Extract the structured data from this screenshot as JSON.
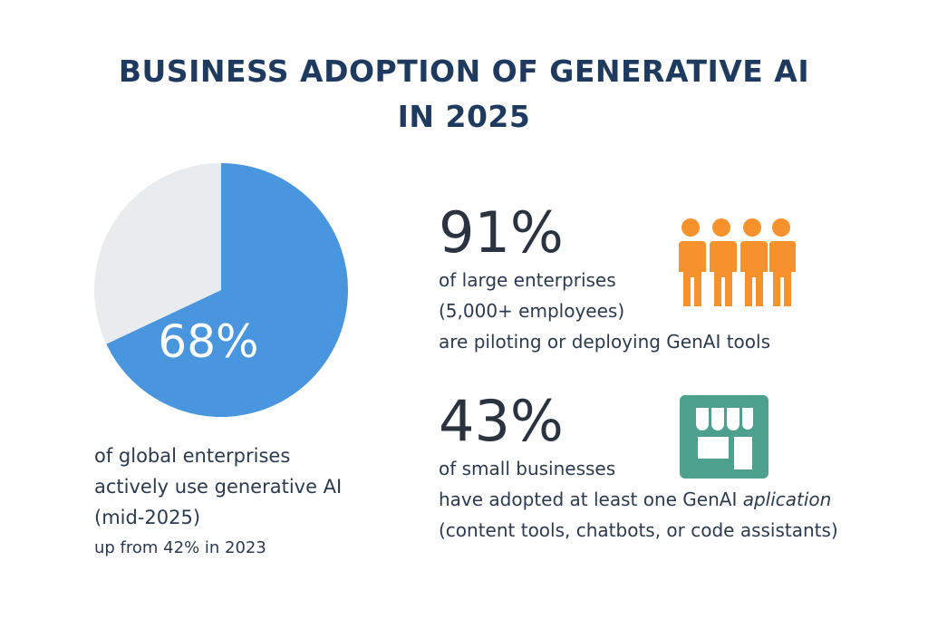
{
  "title": {
    "line1": "BUSINESS ADOPTION OF GENERATIVE AI",
    "line2": "IN 2025"
  },
  "colors": {
    "primary": "#4a96de",
    "remainder": "#e9ecef",
    "people": "#f5922b",
    "store": "#4ea08e",
    "title": "#1f3a5f"
  },
  "chart_data": {
    "type": "pie",
    "values": [
      68,
      32
    ],
    "data_label": "68%",
    "description": {
      "line1": "of global enterprises",
      "line2": "actively use generative AI",
      "line3": "(mid-2025)",
      "line4": "up from 42% in 2023"
    }
  },
  "stats": [
    {
      "value": "91%",
      "line1": "of large enterprises",
      "line2": "(5,000+ employees)",
      "line3": "are piloting or deploying GenAI tools",
      "icon": "people-group-icon"
    },
    {
      "value": "43%",
      "line1": "of small businesses",
      "line2a": "have adopted at least one GenAI ",
      "line2b": "aplication",
      "line3": "(content tools, chatbots, or code assistants)",
      "icon": "storefront-icon"
    }
  ]
}
